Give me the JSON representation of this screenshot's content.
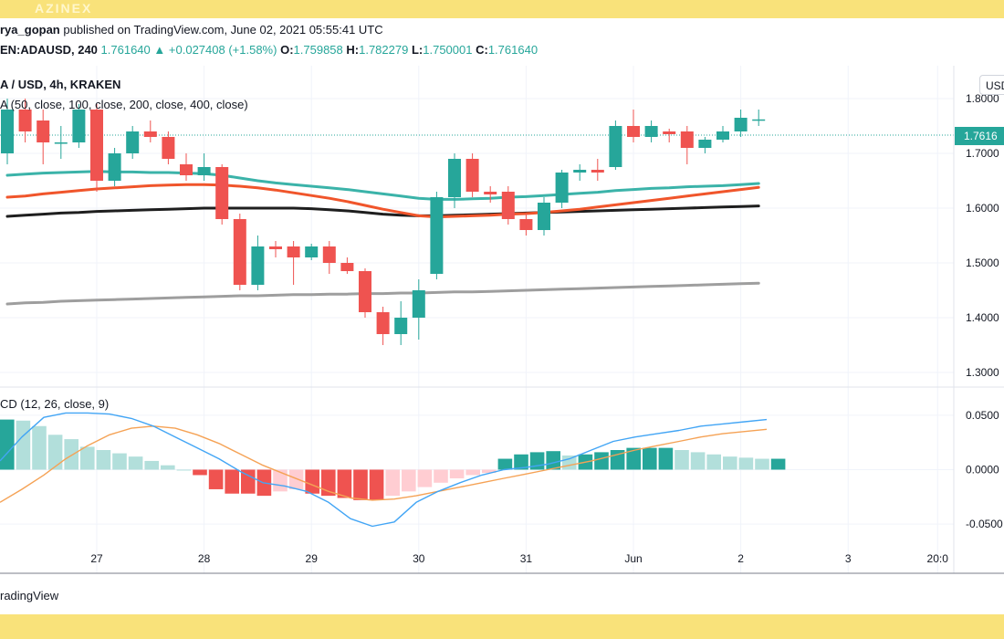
{
  "brand": "AZINEX",
  "header": {
    "published_user": "rya_gopan",
    "published_text": " published on TradingView.com, June 02, 2021 05:55:41 UTC"
  },
  "ohlc": {
    "symbol": "EN:ADAUSD, 240",
    "last": "1.761640",
    "arrow": "▲",
    "change": "+0.027408 (+1.58%)",
    "o_label": "O:",
    "o": "1.759858",
    "h_label": "H:",
    "h": "1.782279",
    "l_label": "L:",
    "l": "1.750001",
    "c_label": "C:",
    "c": "1.761640"
  },
  "main_title": "A / USD, 4h, KRAKEN",
  "ma_title": "A (50, close, 100, close, 200, close, 400, close)",
  "macd_title": "CD (12, 26, close, 9)",
  "footer": "radingView",
  "currency_button": "USD",
  "price_tag": "1.7616",
  "colors": {
    "up": "#26a69a",
    "down": "#ef5350",
    "ma50": "#3bb3a9",
    "ma100": "#f0552b",
    "ma200": "#1e1e1e",
    "ma400": "#9e9e9e",
    "macd_line": "#42a5f5",
    "signal_line": "#f5a255",
    "hist_up_strong": "#26a69a",
    "hist_up_weak": "#b2dfdb",
    "hist_down_strong": "#ef5350",
    "hist_down_weak": "#ffcdd2"
  },
  "chart_data": [
    {
      "type": "candlestick",
      "title": "A / USD, 4h, KRAKEN",
      "y_ticks": [
        "1.8000",
        "1.7000",
        "1.6000",
        "1.5000",
        "1.4000",
        "1.3000"
      ],
      "y_tick_values": [
        1.8,
        1.7,
        1.6,
        1.5,
        1.4,
        1.3
      ],
      "ylim": [
        1.28,
        1.86
      ],
      "x_ticks": [
        "27",
        "28",
        "29",
        "30",
        "31",
        "Jun",
        "2",
        "3",
        "20:0"
      ],
      "x_tick_index": [
        5,
        11,
        17,
        23,
        29,
        35,
        41,
        47,
        52
      ],
      "candles": [
        {
          "o": 1.7,
          "h": 1.8,
          "l": 1.68,
          "c": 1.78
        },
        {
          "o": 1.78,
          "h": 1.8,
          "l": 1.72,
          "c": 1.74
        },
        {
          "o": 1.76,
          "h": 1.78,
          "l": 1.68,
          "c": 1.72
        },
        {
          "o": 1.72,
          "h": 1.75,
          "l": 1.69,
          "c": 1.72
        },
        {
          "o": 1.72,
          "h": 1.79,
          "l": 1.71,
          "c": 1.78
        },
        {
          "o": 1.78,
          "h": 1.79,
          "l": 1.63,
          "c": 1.65
        },
        {
          "o": 1.65,
          "h": 1.71,
          "l": 1.64,
          "c": 1.7
        },
        {
          "o": 1.7,
          "h": 1.75,
          "l": 1.69,
          "c": 1.74
        },
        {
          "o": 1.74,
          "h": 1.76,
          "l": 1.72,
          "c": 1.73
        },
        {
          "o": 1.73,
          "h": 1.74,
          "l": 1.68,
          "c": 1.69
        },
        {
          "o": 1.68,
          "h": 1.7,
          "l": 1.65,
          "c": 1.66
        },
        {
          "o": 1.66,
          "h": 1.7,
          "l": 1.65,
          "c": 1.675
        },
        {
          "o": 1.675,
          "h": 1.68,
          "l": 1.57,
          "c": 1.58
        },
        {
          "o": 1.58,
          "h": 1.59,
          "l": 1.45,
          "c": 1.46
        },
        {
          "o": 1.46,
          "h": 1.55,
          "l": 1.45,
          "c": 1.53
        },
        {
          "o": 1.53,
          "h": 1.54,
          "l": 1.51,
          "c": 1.525
        },
        {
          "o": 1.53,
          "h": 1.54,
          "l": 1.46,
          "c": 1.51
        },
        {
          "o": 1.51,
          "h": 1.535,
          "l": 1.505,
          "c": 1.53
        },
        {
          "o": 1.53,
          "h": 1.54,
          "l": 1.48,
          "c": 1.5
        },
        {
          "o": 1.5,
          "h": 1.51,
          "l": 1.48,
          "c": 1.485
        },
        {
          "o": 1.485,
          "h": 1.49,
          "l": 1.4,
          "c": 1.41
        },
        {
          "o": 1.41,
          "h": 1.42,
          "l": 1.35,
          "c": 1.37
        },
        {
          "o": 1.37,
          "h": 1.43,
          "l": 1.35,
          "c": 1.4
        },
        {
          "o": 1.4,
          "h": 1.47,
          "l": 1.36,
          "c": 1.45
        },
        {
          "o": 1.48,
          "h": 1.63,
          "l": 1.47,
          "c": 1.62
        },
        {
          "o": 1.62,
          "h": 1.7,
          "l": 1.6,
          "c": 1.69
        },
        {
          "o": 1.69,
          "h": 1.7,
          "l": 1.62,
          "c": 1.63
        },
        {
          "o": 1.63,
          "h": 1.64,
          "l": 1.61,
          "c": 1.625
        },
        {
          "o": 1.63,
          "h": 1.64,
          "l": 1.57,
          "c": 1.58
        },
        {
          "o": 1.58,
          "h": 1.59,
          "l": 1.55,
          "c": 1.56
        },
        {
          "o": 1.56,
          "h": 1.62,
          "l": 1.55,
          "c": 1.61
        },
        {
          "o": 1.61,
          "h": 1.67,
          "l": 1.6,
          "c": 1.665
        },
        {
          "o": 1.665,
          "h": 1.68,
          "l": 1.65,
          "c": 1.67
        },
        {
          "o": 1.67,
          "h": 1.69,
          "l": 1.65,
          "c": 1.665
        },
        {
          "o": 1.675,
          "h": 1.76,
          "l": 1.67,
          "c": 1.75
        },
        {
          "o": 1.75,
          "h": 1.78,
          "l": 1.72,
          "c": 1.73
        },
        {
          "o": 1.73,
          "h": 1.76,
          "l": 1.72,
          "c": 1.75
        },
        {
          "o": 1.74,
          "h": 1.745,
          "l": 1.72,
          "c": 1.735
        },
        {
          "o": 1.74,
          "h": 1.75,
          "l": 1.68,
          "c": 1.71
        },
        {
          "o": 1.71,
          "h": 1.73,
          "l": 1.7,
          "c": 1.725
        },
        {
          "o": 1.725,
          "h": 1.75,
          "l": 1.72,
          "c": 1.74
        },
        {
          "o": 1.74,
          "h": 1.78,
          "l": 1.73,
          "c": 1.765
        },
        {
          "o": 1.76,
          "h": 1.78,
          "l": 1.75,
          "c": 1.762
        }
      ],
      "ma50": [
        1.66,
        1.662,
        1.664,
        1.665,
        1.666,
        1.667,
        1.666,
        1.666,
        1.665,
        1.665,
        1.664,
        1.663,
        1.66,
        1.655,
        1.65,
        1.646,
        1.643,
        1.64,
        1.637,
        1.634,
        1.63,
        1.626,
        1.622,
        1.618,
        1.616,
        1.616,
        1.617,
        1.618,
        1.62,
        1.621,
        1.623,
        1.625,
        1.627,
        1.629,
        1.632,
        1.634,
        1.636,
        1.637,
        1.639,
        1.64,
        1.641,
        1.643,
        1.645
      ],
      "ma100": [
        1.62,
        1.622,
        1.626,
        1.629,
        1.632,
        1.635,
        1.637,
        1.639,
        1.641,
        1.642,
        1.643,
        1.643,
        1.642,
        1.64,
        1.637,
        1.633,
        1.628,
        1.623,
        1.618,
        1.612,
        1.605,
        1.598,
        1.592,
        1.586,
        1.584,
        1.585,
        1.586,
        1.587,
        1.589,
        1.59,
        1.592,
        1.595,
        1.598,
        1.602,
        1.606,
        1.61,
        1.614,
        1.618,
        1.622,
        1.626,
        1.63,
        1.634,
        1.638
      ],
      "ma200": [
        1.585,
        1.587,
        1.589,
        1.591,
        1.592,
        1.594,
        1.595,
        1.596,
        1.597,
        1.598,
        1.599,
        1.6,
        1.6,
        1.6,
        1.6,
        1.6,
        1.6,
        1.599,
        1.597,
        1.595,
        1.592,
        1.589,
        1.587,
        1.586,
        1.586,
        1.587,
        1.588,
        1.589,
        1.59,
        1.591,
        1.592,
        1.593,
        1.594,
        1.595,
        1.596,
        1.597,
        1.598,
        1.599,
        1.6,
        1.601,
        1.602,
        1.603,
        1.604
      ],
      "ma400": [
        1.425,
        1.427,
        1.428,
        1.43,
        1.431,
        1.432,
        1.433,
        1.434,
        1.435,
        1.436,
        1.437,
        1.438,
        1.439,
        1.44,
        1.44,
        1.441,
        1.442,
        1.442,
        1.443,
        1.443,
        1.444,
        1.444,
        1.445,
        1.445,
        1.446,
        1.447,
        1.447,
        1.448,
        1.449,
        1.45,
        1.451,
        1.452,
        1.453,
        1.454,
        1.455,
        1.456,
        1.457,
        1.458,
        1.459,
        1.46,
        1.461,
        1.462,
        1.463
      ]
    },
    {
      "type": "macd",
      "title": "CD (12, 26, close, 9)",
      "y_ticks": [
        "0.0500",
        "0.0000",
        "-0.0500"
      ],
      "y_tick_values": [
        0.05,
        0.0,
        -0.05
      ],
      "ylim": [
        -0.07,
        0.075
      ],
      "histogram": [
        0.046,
        0.045,
        0.04,
        0.032,
        0.028,
        0.021,
        0.018,
        0.015,
        0.012,
        0.008,
        0.004,
        0.0,
        -0.005,
        -0.018,
        -0.022,
        -0.022,
        -0.024,
        -0.02,
        -0.018,
        -0.022,
        -0.024,
        -0.026,
        -0.028,
        -0.028,
        -0.024,
        -0.02,
        -0.016,
        -0.012,
        -0.008,
        -0.005,
        -0.003,
        0.01,
        0.014,
        0.016,
        0.017,
        0.013,
        0.014,
        0.016,
        0.018,
        0.02,
        0.02,
        0.02,
        0.018,
        0.016,
        0.014,
        0.012,
        0.011,
        0.01,
        0.01
      ],
      "histogram_note": "",
      "macd_line": [
        0.008,
        0.03,
        0.048,
        0.052,
        0.052,
        0.051,
        0.047,
        0.04,
        0.03,
        0.02,
        0.01,
        -0.002,
        -0.012,
        -0.015,
        -0.02,
        -0.03,
        -0.045,
        -0.052,
        -0.048,
        -0.03,
        -0.02,
        -0.012,
        -0.005,
        0.0,
        0.002,
        0.005,
        0.01,
        0.018,
        0.026,
        0.03,
        0.033,
        0.036,
        0.04,
        0.042,
        0.044,
        0.046
      ],
      "signal_line": [
        -0.03,
        -0.018,
        -0.005,
        0.01,
        0.022,
        0.032,
        0.038,
        0.04,
        0.038,
        0.032,
        0.024,
        0.014,
        0.004,
        -0.004,
        -0.012,
        -0.02,
        -0.026,
        -0.028,
        -0.027,
        -0.024,
        -0.02,
        -0.016,
        -0.012,
        -0.008,
        -0.004,
        0.0,
        0.004,
        0.008,
        0.013,
        0.018,
        0.022,
        0.026,
        0.03,
        0.033,
        0.035,
        0.037
      ]
    }
  ]
}
